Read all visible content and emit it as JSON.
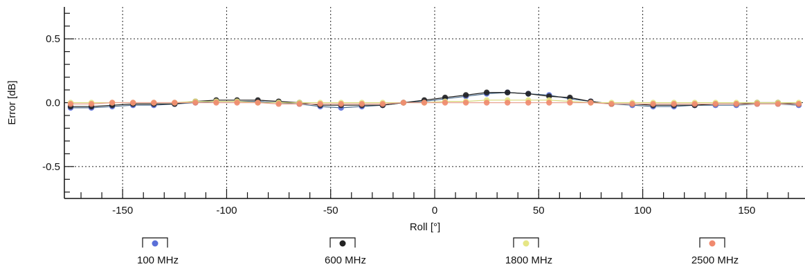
{
  "chart_data": {
    "type": "line",
    "xlabel": "Roll [°]",
    "ylabel": "Error [dB]",
    "xlim": [
      -178,
      178
    ],
    "ylim": [
      -0.75,
      0.75
    ],
    "x_ticks": [
      -150,
      -100,
      -50,
      0,
      50,
      100,
      150
    ],
    "x_tick_labels": [
      "-150",
      "-100",
      "-50",
      "0",
      "50",
      "100",
      "150"
    ],
    "y_ticks": [
      0.5,
      0.0,
      -0.5
    ],
    "y_tick_labels": [
      "0.5",
      "0.0",
      "-0.5"
    ],
    "grid": true,
    "legend_position": "bottom",
    "x": [
      -175,
      -165,
      -155,
      -145,
      -135,
      -125,
      -115,
      -105,
      -95,
      -85,
      -75,
      -65,
      -55,
      -45,
      -35,
      -25,
      -15,
      -5,
      5,
      15,
      25,
      35,
      45,
      55,
      65,
      75,
      85,
      95,
      105,
      115,
      125,
      135,
      145,
      155,
      165,
      175
    ],
    "series": [
      {
        "name": "100 MHz",
        "color": "#5a6fd8",
        "values": [
          -0.04,
          -0.04,
          -0.03,
          -0.02,
          -0.02,
          -0.01,
          0.0,
          0.01,
          0.01,
          0.01,
          0.0,
          -0.01,
          -0.03,
          -0.04,
          -0.03,
          -0.02,
          0.0,
          0.01,
          0.03,
          0.05,
          0.07,
          0.08,
          0.07,
          0.06,
          0.03,
          0.01,
          -0.01,
          -0.02,
          -0.03,
          -0.03,
          -0.02,
          -0.02,
          -0.02,
          -0.01,
          -0.01,
          -0.02
        ]
      },
      {
        "name": "600 MHz",
        "color": "#222222",
        "values": [
          -0.03,
          -0.03,
          -0.02,
          -0.01,
          -0.01,
          -0.01,
          0.01,
          0.02,
          0.02,
          0.02,
          0.01,
          0.0,
          -0.02,
          -0.02,
          -0.02,
          -0.02,
          0.0,
          0.02,
          0.04,
          0.06,
          0.08,
          0.08,
          0.07,
          0.05,
          0.04,
          0.01,
          -0.01,
          -0.01,
          -0.02,
          -0.02,
          -0.02,
          -0.01,
          -0.01,
          0.0,
          0.0,
          -0.01
        ]
      },
      {
        "name": "1800 MHz",
        "color": "#e6e685",
        "values": [
          0.0,
          0.0,
          0.0,
          0.0,
          0.0,
          0.0,
          0.01,
          0.01,
          0.01,
          0.0,
          0.0,
          0.0,
          0.0,
          0.0,
          0.0,
          0.0,
          0.0,
          0.0,
          0.01,
          0.01,
          0.02,
          0.02,
          0.02,
          0.02,
          0.01,
          0.0,
          0.0,
          0.0,
          0.0,
          0.0,
          0.0,
          0.0,
          0.0,
          0.0,
          0.0,
          0.0
        ]
      },
      {
        "name": "2500 MHz",
        "color": "#f08a6e",
        "values": [
          -0.01,
          -0.01,
          0.0,
          0.0,
          0.0,
          0.0,
          0.0,
          0.0,
          0.0,
          0.0,
          -0.01,
          -0.01,
          -0.01,
          -0.01,
          -0.01,
          -0.01,
          0.0,
          0.0,
          0.0,
          0.0,
          0.0,
          0.0,
          0.0,
          0.0,
          0.0,
          0.0,
          -0.01,
          -0.01,
          -0.01,
          -0.01,
          -0.01,
          -0.01,
          -0.01,
          -0.01,
          -0.01,
          -0.01
        ]
      }
    ]
  }
}
